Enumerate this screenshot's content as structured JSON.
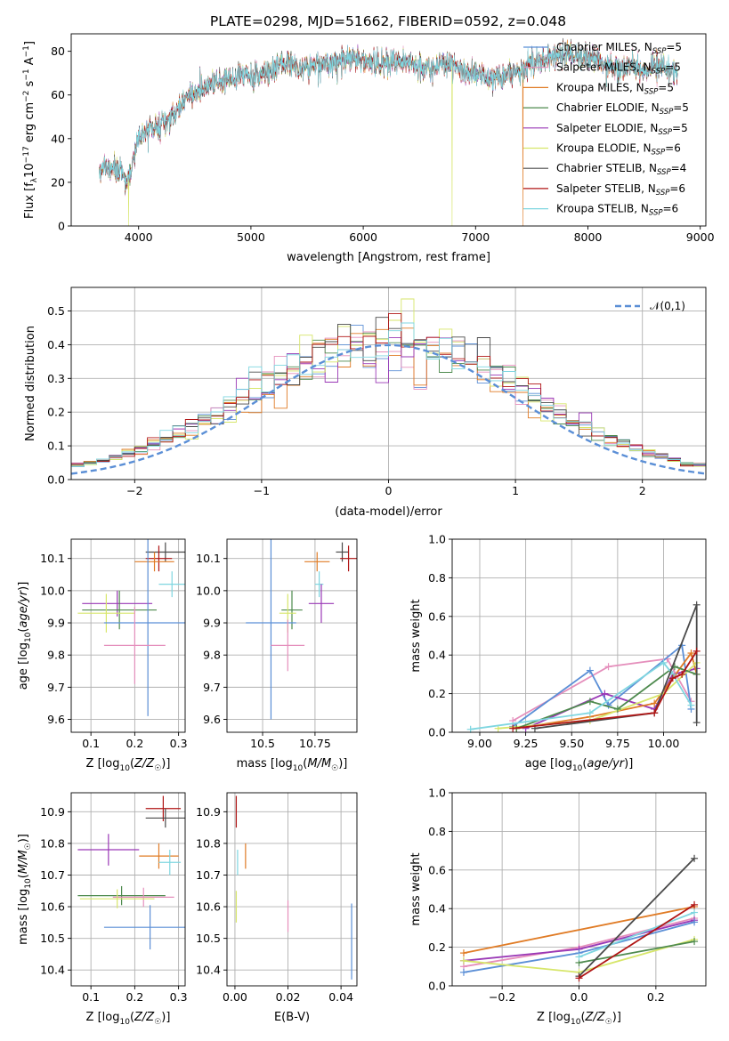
{
  "figure_title": "PLATE=0298, MJD=51662, FIBERID=0592, z=0.048",
  "chart_data": [
    {
      "id": "spectrum",
      "type": "line",
      "xlabel": "wavelength [Angstrom, rest frame]",
      "ylabel": "Flux [f_λ10^-17 erg cm^-2 s^-1 A^-1]",
      "xlim": [
        3400,
        9050
      ],
      "ylim": [
        0,
        88
      ],
      "xticks": [
        4000,
        5000,
        6000,
        7000,
        8000,
        9000
      ],
      "yticks": [
        0,
        20,
        40,
        60,
        80
      ],
      "grid": false,
      "legend_position": "top-right",
      "spectrum_coverage": [
        3650,
        8800
      ],
      "continuum_anchors": {
        "x": [
          3650,
          3700,
          3800,
          3900,
          3950,
          4000,
          4100,
          4200,
          4300,
          4400,
          4500,
          4600,
          4700,
          4800,
          4900,
          5000,
          5100,
          5200,
          5300,
          5400,
          5500,
          5600,
          5700,
          5800,
          5900,
          6000,
          6100,
          6200,
          6300,
          6400,
          6500,
          6600,
          6700,
          6800,
          6900,
          7000,
          7100,
          7200,
          7300,
          7400,
          7500,
          7600,
          7700,
          7800,
          7900,
          8000,
          8100,
          8200,
          8300,
          8400,
          8500,
          8600,
          8700,
          8800
        ],
        "y": [
          22,
          28,
          25,
          22,
          30,
          40,
          44,
          46,
          50,
          58,
          60,
          64,
          66,
          68,
          69,
          68,
          70,
          72,
          75,
          73,
          72,
          74,
          75,
          76,
          77,
          76,
          75,
          74,
          76,
          76,
          73,
          72,
          74,
          74,
          71,
          70,
          68,
          69,
          70,
          72,
          74,
          76,
          78,
          79,
          77,
          78,
          76,
          73,
          72,
          74,
          70,
          75,
          72,
          71
        ]
      },
      "series": [
        {
          "name": "Chabrier MILES",
          "nssp": "5",
          "color": "#5b8fd6"
        },
        {
          "name": "Salpeter MILES",
          "nssp": "5",
          "color": "#e58fbc"
        },
        {
          "name": "Kroupa MILES",
          "nssp": "5",
          "color": "#e07b25"
        },
        {
          "name": "Chabrier ELODIE",
          "nssp": "5",
          "color": "#4e8a4e"
        },
        {
          "name": "Salpeter ELODIE",
          "nssp": "5",
          "color": "#9a38b6"
        },
        {
          "name": "Kroupa ELODIE",
          "nssp": "6",
          "color": "#d7e66a"
        },
        {
          "name": "Chabrier STELIB",
          "nssp": "4",
          "color": "#4a4a4a"
        },
        {
          "name": "Salpeter STELIB",
          "nssp": "6",
          "color": "#b01515"
        },
        {
          "name": "Kroupa STELIB",
          "nssp": "6",
          "color": "#7fd6e0"
        }
      ],
      "dropouts": [
        {
          "series": "Kroupa ELODIE",
          "x": 3910
        },
        {
          "series": "Kroupa ELODIE",
          "x": 6790
        },
        {
          "series": "Kroupa MILES",
          "x": 7420
        }
      ]
    },
    {
      "id": "residuals",
      "type": "histogram",
      "xlabel": "(data-model)/error",
      "ylabel": "Normed distribution",
      "xlim": [
        -2.5,
        2.5
      ],
      "ylim": [
        0,
        0.57
      ],
      "xticks": [
        -2,
        -1,
        0,
        1,
        2
      ],
      "yticks": [
        0.0,
        0.1,
        0.2,
        0.3,
        0.4,
        0.5
      ],
      "grid": true,
      "bin_width": 0.1,
      "legend": [
        {
          "label": "𝒩(0,1)",
          "color": "#5b8fd6",
          "style": "dashed"
        }
      ],
      "legend_position": "top-right"
    },
    {
      "id": "age-vs-Z",
      "type": "scatter",
      "xlabel": "Z [log10(Z/Z☉)]",
      "ylabel": "age  [log10(age/yr)]",
      "xlim": [
        0.055,
        0.315
      ],
      "ylim": [
        9.56,
        10.16
      ],
      "xticks": [
        0.1,
        0.2,
        0.3
      ],
      "yticks": [
        9.6,
        9.7,
        9.8,
        9.9,
        10.0,
        10.1
      ],
      "grid": true,
      "points": [
        {
          "color": "#4a4a4a",
          "x": 0.27,
          "xerr": 0.045,
          "y": 10.12,
          "yerr": 0.03
        },
        {
          "color": "#b01515",
          "x": 0.255,
          "xerr": 0.03,
          "y": 10.1,
          "yerr": 0.04
        },
        {
          "color": "#e07b25",
          "x": 0.245,
          "xerr": 0.045,
          "y": 10.09,
          "yerr": 0.03
        },
        {
          "color": "#7fd6e0",
          "x": 0.285,
          "xerr": 0.03,
          "y": 10.02,
          "yerr": 0.04
        },
        {
          "color": "#9a38b6",
          "x": 0.16,
          "xerr": 0.08,
          "y": 9.96,
          "yerr": 0.04
        },
        {
          "color": "#4e8a4e",
          "x": 0.165,
          "xerr": 0.085,
          "y": 9.94,
          "yerr": 0.06
        },
        {
          "color": "#d7e66a",
          "x": 0.135,
          "xerr": 0.065,
          "y": 9.93,
          "yerr": 0.06
        },
        {
          "color": "#5b8fd6",
          "x": 0.23,
          "xerr": 0.1,
          "y": 9.9,
          "yerr": 0.29
        },
        {
          "color": "#e58fbc",
          "x": 0.2,
          "xerr": 0.07,
          "y": 9.83,
          "yerr": 0.12
        }
      ]
    },
    {
      "id": "age-vs-mass",
      "type": "scatter",
      "xlabel": "mass [log10(M/M☉)]",
      "ylabel": "",
      "xlim": [
        10.33,
        10.95
      ],
      "ylim": [
        9.56,
        10.16
      ],
      "xticks": [
        10.5,
        10.75
      ],
      "yticks": [
        9.6,
        9.7,
        9.8,
        9.9,
        10.0,
        10.1
      ],
      "grid": true,
      "points": [
        {
          "color": "#4a4a4a",
          "x": 10.88,
          "xerr": 0.03,
          "y": 10.12,
          "yerr": 0.03
        },
        {
          "color": "#b01515",
          "x": 10.91,
          "xerr": 0.04,
          "y": 10.1,
          "yerr": 0.04
        },
        {
          "color": "#e07b25",
          "x": 10.76,
          "xerr": 0.06,
          "y": 10.09,
          "yerr": 0.03
        },
        {
          "color": "#7fd6e0",
          "x": 10.77,
          "xerr": 0.02,
          "y": 10.02,
          "yerr": 0.04
        },
        {
          "color": "#9a38b6",
          "x": 10.78,
          "xerr": 0.06,
          "y": 9.96,
          "yerr": 0.06
        },
        {
          "color": "#4e8a4e",
          "x": 10.64,
          "xerr": 0.05,
          "y": 9.94,
          "yerr": 0.06
        },
        {
          "color": "#d7e66a",
          "x": 10.62,
          "xerr": 0.04,
          "y": 9.93,
          "yerr": 0.06
        },
        {
          "color": "#5b8fd6",
          "x": 10.54,
          "xerr": 0.12,
          "y": 9.9,
          "yerr": 0.3
        },
        {
          "color": "#e58fbc",
          "x": 10.62,
          "xerr": 0.08,
          "y": 9.83,
          "yerr": 0.08
        }
      ]
    },
    {
      "id": "weight-vs-age",
      "type": "line",
      "xlabel": "age  [log10(age/yr)]",
      "ylabel": "mass weight",
      "xlim": [
        8.85,
        10.23
      ],
      "ylim": [
        0,
        1.0
      ],
      "xticks": [
        9.0,
        9.25,
        9.5,
        9.75,
        10.0
      ],
      "yticks": [
        0.0,
        0.2,
        0.4,
        0.6,
        0.8,
        1.0
      ],
      "grid": true,
      "series": [
        {
          "color": "#e58fbc",
          "x": [
            9.18,
            9.7,
            10.02,
            10.15
          ],
          "y": [
            0.06,
            0.34,
            0.38,
            0.16
          ]
        },
        {
          "color": "#5b8fd6",
          "x": [
            9.18,
            9.6,
            9.7,
            10.1,
            10.15
          ],
          "y": [
            0.03,
            0.32,
            0.14,
            0.45,
            0.12
          ]
        },
        {
          "color": "#9a38b6",
          "x": [
            9.25,
            9.68,
            9.95,
            10.05,
            10.18
          ],
          "y": [
            0.02,
            0.2,
            0.12,
            0.3,
            0.33
          ]
        },
        {
          "color": "#e07b25",
          "x": [
            9.2,
            9.6,
            9.95,
            10.15,
            10.18
          ],
          "y": [
            0.02,
            0.08,
            0.15,
            0.41,
            0.3
          ]
        },
        {
          "color": "#d7e66a",
          "x": [
            9.1,
            9.6,
            10.0,
            10.18
          ],
          "y": [
            0.02,
            0.06,
            0.2,
            0.36
          ]
        },
        {
          "color": "#4e8a4e",
          "x": [
            9.2,
            9.6,
            9.75,
            10.06,
            10.18
          ],
          "y": [
            0.02,
            0.16,
            0.12,
            0.34,
            0.3
          ]
        },
        {
          "color": "#7fd6e0",
          "x": [
            8.95,
            9.6,
            10.0,
            10.05,
            10.15
          ],
          "y": [
            0.015,
            0.1,
            0.36,
            0.3,
            0.14
          ]
        },
        {
          "color": "#4a4a4a",
          "x": [
            9.3,
            9.95,
            10.18,
            10.18
          ],
          "y": [
            0.02,
            0.1,
            0.66,
            0.05
          ]
        },
        {
          "color": "#b01515",
          "x": [
            9.18,
            9.95,
            10.05,
            10.1,
            10.18
          ],
          "y": [
            0.02,
            0.1,
            0.28,
            0.3,
            0.42
          ]
        }
      ]
    },
    {
      "id": "mass-vs-Z",
      "type": "scatter",
      "xlabel": "Z [log10(Z/Z☉)]",
      "ylabel": "mass [log10(M/M☉)]",
      "xlim": [
        0.055,
        0.315
      ],
      "ylim": [
        10.35,
        10.96
      ],
      "xticks": [
        0.1,
        0.2,
        0.3
      ],
      "yticks": [
        10.4,
        10.5,
        10.6,
        10.7,
        10.8,
        10.9
      ],
      "grid": true,
      "points": [
        {
          "color": "#b01515",
          "x": 0.265,
          "xerr": 0.04,
          "y": 10.91,
          "yerr": 0.04
        },
        {
          "color": "#4a4a4a",
          "x": 0.27,
          "xerr": 0.045,
          "y": 10.88,
          "yerr": 0.03
        },
        {
          "color": "#9a38b6",
          "x": 0.14,
          "xerr": 0.07,
          "y": 10.78,
          "yerr": 0.05
        },
        {
          "color": "#e07b25",
          "x": 0.255,
          "xerr": 0.045,
          "y": 10.76,
          "yerr": 0.04
        },
        {
          "color": "#7fd6e0",
          "x": 0.28,
          "xerr": 0.025,
          "y": 10.74,
          "yerr": 0.04
        },
        {
          "color": "#4e8a4e",
          "x": 0.17,
          "xerr": 0.1,
          "y": 10.635,
          "yerr": 0.03
        },
        {
          "color": "#e58fbc",
          "x": 0.22,
          "xerr": 0.07,
          "y": 10.63,
          "yerr": 0.03
        },
        {
          "color": "#d7e66a",
          "x": 0.16,
          "xerr": 0.085,
          "y": 10.625,
          "yerr": 0.03
        },
        {
          "color": "#5b8fd6",
          "x": 0.235,
          "xerr": 0.105,
          "y": 10.535,
          "yerr": 0.07
        }
      ]
    },
    {
      "id": "mass-vs-EBV",
      "type": "scatter",
      "xlabel": "E(B-V)",
      "ylabel": "",
      "xlim": [
        -0.003,
        0.046
      ],
      "ylim": [
        10.35,
        10.96
      ],
      "xticks": [
        0.0,
        0.02,
        0.04
      ],
      "yticks": [
        10.4,
        10.5,
        10.6,
        10.7,
        10.8,
        10.9
      ],
      "grid": true,
      "points": [
        {
          "color": "#b01515",
          "x": 0.0005,
          "y": 10.9,
          "yerr": 0.05
        },
        {
          "color": "#e07b25",
          "x": 0.004,
          "y": 10.76,
          "yerr": 0.04
        },
        {
          "color": "#7fd6e0",
          "x": 0.001,
          "y": 10.74,
          "yerr": 0.04
        },
        {
          "color": "#d7e66a",
          "x": 0.0005,
          "y": 10.6,
          "yerr": 0.05
        },
        {
          "color": "#e58fbc",
          "x": 0.02,
          "y": 10.57,
          "yerr": 0.05
        },
        {
          "color": "#5b8fd6",
          "x": 0.044,
          "y": 10.49,
          "yerr": 0.12
        }
      ]
    },
    {
      "id": "weight-vs-Z",
      "type": "line",
      "xlabel": "Z [log10(Z/Z☉)]",
      "ylabel": "mass weight",
      "xlim": [
        -0.33,
        0.33
      ],
      "ylim": [
        0,
        1.0
      ],
      "xticks": [
        -0.2,
        0.0,
        0.2
      ],
      "yticks": [
        0.0,
        0.2,
        0.4,
        0.6,
        0.8,
        1.0
      ],
      "grid": true,
      "series": [
        {
          "color": "#e07b25",
          "x": [
            -0.3,
            0.3
          ],
          "y": [
            0.17,
            0.41
          ]
        },
        {
          "color": "#e58fbc",
          "x": [
            -0.3,
            0.0,
            0.3
          ],
          "y": [
            0.1,
            0.2,
            0.35
          ]
        },
        {
          "color": "#9a38b6",
          "x": [
            -0.3,
            0.0,
            0.3
          ],
          "y": [
            0.13,
            0.19,
            0.34
          ]
        },
        {
          "color": "#5b8fd6",
          "x": [
            -0.3,
            0.0,
            0.3
          ],
          "y": [
            0.07,
            0.17,
            0.33
          ]
        },
        {
          "color": "#d7e66a",
          "x": [
            -0.3,
            0.0,
            0.3
          ],
          "y": [
            0.13,
            0.07,
            0.24
          ]
        },
        {
          "color": "#4e8a4e",
          "x": [
            0.0,
            0.3
          ],
          "y": [
            0.12,
            0.23
          ]
        },
        {
          "color": "#7fd6e0",
          "x": [
            0.0,
            0.3
          ],
          "y": [
            0.15,
            0.38
          ]
        },
        {
          "color": "#4a4a4a",
          "x": [
            0.0,
            0.3
          ],
          "y": [
            0.05,
            0.66
          ]
        },
        {
          "color": "#b01515",
          "x": [
            0.0,
            0.3
          ],
          "y": [
            0.04,
            0.42
          ]
        }
      ]
    }
  ]
}
